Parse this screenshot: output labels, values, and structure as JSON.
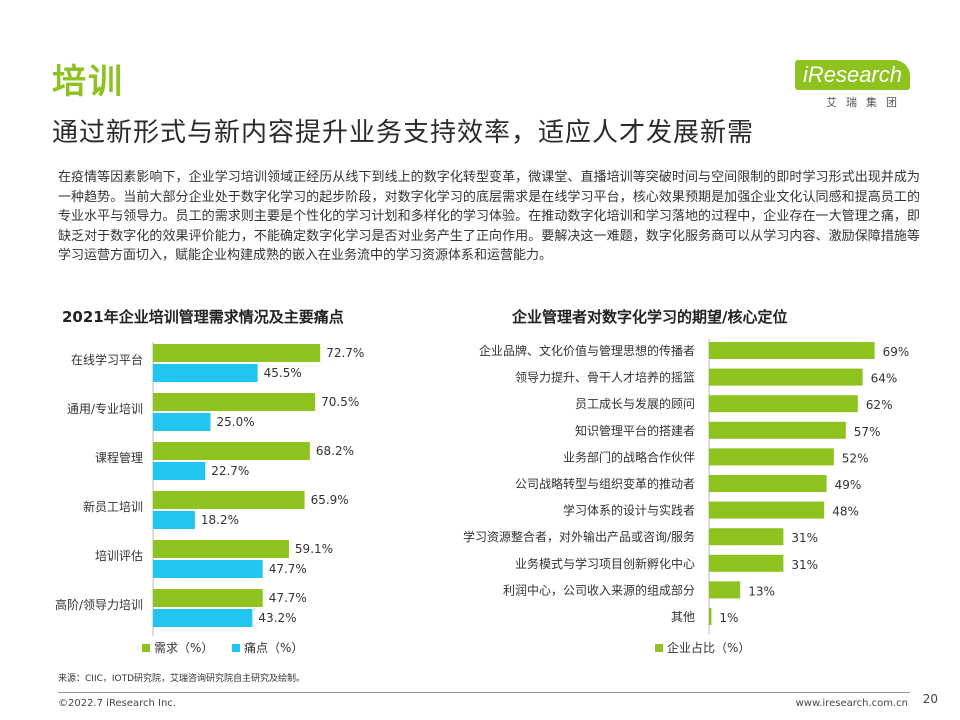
{
  "header": {
    "section_title": "培训",
    "headline": "通过新形式与新内容提升业务支持效率，适应人才发展新需",
    "logo_text": "iResearch",
    "logo_subtitle": "艾瑞集团"
  },
  "paragraph": "在疫情等因素影响下，企业学习培训领域正经历从线下到线上的数字化转型变革，微课堂、直播培训等突破时间与空间限制的即时学习形式出现并成为一种趋势。当前大部分企业处于数字化学习的起步阶段，对数字化学习的底层需求是在线学习平台，核心效果预期是加强企业文化认同感和提高员工的专业水平与领导力。员工的需求则主要是个性化的学习计划和多样化的学习体验。在推动数字化培训和学习落地的过程中，企业存在一大管理之痛，即缺乏对于数字化的效果评价能力，不能确定数字化学习是否对业务产生了正向作用。要解决这一难题，数字化服务商可以从学习内容、激励保障措施等学习运营方面切入，赋能企业构建成熟的嵌入在业务流中的学习资源体系和运营能力。",
  "colors": {
    "accent": "#8dc21f",
    "demand": "#8dc21f",
    "pain": "#21c5ef"
  },
  "chart_data": [
    {
      "type": "bar",
      "orientation": "horizontal",
      "title": "2021年企业培训管理需求情况及主要痛点",
      "categories": [
        "在线学习平台",
        "通用/专业培训",
        "课程管理",
        "新员工培训",
        "培训评估",
        "高阶/领导力培训"
      ],
      "series": [
        {
          "name": "需求（%）",
          "values": [
            72.7,
            70.5,
            68.2,
            65.9,
            59.1,
            47.7
          ],
          "labels": [
            "72.7%",
            "70.5%",
            "68.2%",
            "65.9%",
            "59.1%",
            "47.7%"
          ]
        },
        {
          "name": "痛点（%）",
          "values": [
            45.5,
            25.0,
            22.7,
            18.2,
            47.7,
            43.2
          ],
          "labels": [
            "45.5%",
            "25.0%",
            "22.7%",
            "18.2%",
            "47.7%",
            "43.2%"
          ]
        }
      ],
      "legend": "bottom-left"
    },
    {
      "type": "bar",
      "orientation": "horizontal",
      "title": "企业管理者对数字化学习的期望/核心定位",
      "categories": [
        "企业品牌、文化价值与管理思想的传播者",
        "领导力提升、骨干人才培养的摇篮",
        "员工成长与发展的顾问",
        "知识管理平台的搭建者",
        "业务部门的战略合作伙伴",
        "公司战略转型与组织变革的推动者",
        "学习体系的设计与实践者",
        "学习资源整合者，对外输出产品或咨询/服务",
        "业务模式与学习项目创新孵化中心",
        "利润中心，公司收入来源的组成部分",
        "其他"
      ],
      "series": [
        {
          "name": "企业占比（%）",
          "values": [
            69,
            64,
            62,
            57,
            52,
            49,
            48,
            31,
            31,
            13,
            1
          ],
          "labels": [
            "69%",
            "64%",
            "62%",
            "57%",
            "52%",
            "49%",
            "48%",
            "31%",
            "31%",
            "13%",
            "1%"
          ]
        }
      ],
      "legend": "bottom-left"
    }
  ],
  "footer": {
    "source": "来源：CIIC，IOTD研究院，艾瑞咨询研究院自主研究及绘制。",
    "copyright": "©2022.7 iResearch Inc.",
    "website": "www.iresearch.com.cn",
    "page_number": "20"
  }
}
